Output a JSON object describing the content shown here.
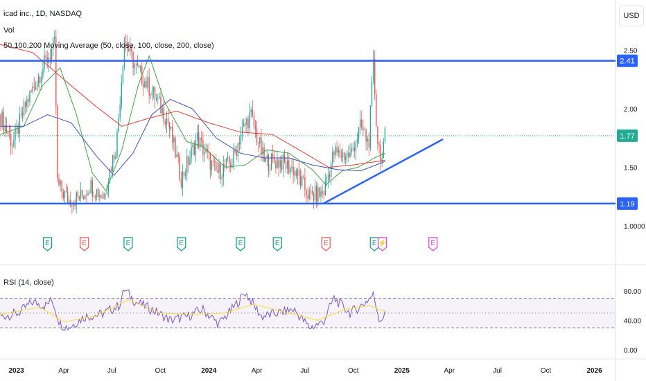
{
  "header": {
    "symbol": "icad inc., 1D, NASDAQ",
    "vol_label": "Vol",
    "ma_label": "50,100,200 Moving Average (50, close, 100, close, 200, close)",
    "rsi_label": "RSI (14, close)",
    "currency": "USD"
  },
  "colors": {
    "up": "#26a69a",
    "down": "#ef5350",
    "ma50": "#43a047",
    "ma100": "#3f51b5",
    "ma200": "#e53935",
    "trendline": "#2962ff",
    "rsi": "#7e57c2",
    "rsi_ma": "#fdd835",
    "price_badge": "#22ab94",
    "earnings": "#089981",
    "earnings_future": "#d53fd8"
  },
  "chart_data": [
    {
      "type": "candlestick",
      "title": "icad inc., 1D, NASDAQ",
      "y_ticks": [
        "2.50",
        "2.00",
        "1.50",
        "1.0000"
      ],
      "ylim": [
        0.85,
        2.9
      ],
      "x_ticks": [
        "2023",
        "Apr",
        "Jul",
        "Oct",
        "2024",
        "Apr",
        "Jul",
        "Oct",
        "2025",
        "Apr",
        "Jul",
        "Oct",
        "2026"
      ],
      "last_price": "1.77",
      "horizontal_lines": [
        {
          "label": "2.41",
          "value": 2.41
        },
        {
          "label": "1.19",
          "value": 1.19
        }
      ],
      "trendline": {
        "from": {
          "date": "2024-08-05",
          "value": 1.19
        },
        "to": {
          "date": "2025-03-20",
          "value": 1.74
        }
      },
      "earnings_markers": [
        {
          "date": "2023-03-01",
          "letter": "E",
          "beat": true
        },
        {
          "date": "2023-05-10",
          "letter": "E",
          "beat": false
        },
        {
          "date": "2023-08-01",
          "letter": "E",
          "beat": true
        },
        {
          "date": "2023-11-10",
          "letter": "E",
          "beat": true
        },
        {
          "date": "2024-03-01",
          "letter": "E",
          "beat": true
        },
        {
          "date": "2024-05-10",
          "letter": "E",
          "beat": true
        },
        {
          "date": "2024-08-10",
          "letter": "E",
          "beat": false
        },
        {
          "date": "2024-11-10",
          "letter": "E",
          "beat": true
        },
        {
          "date": "2024-11-25",
          "letter": "⚡",
          "beat": null
        },
        {
          "date": "2025-03-01",
          "letter": "E",
          "beat": null
        }
      ],
      "series": [
        {
          "name": "price",
          "points": [
            {
              "date": "2022-12-01",
              "value": 1.95
            },
            {
              "date": "2022-12-25",
              "value": 1.7
            },
            {
              "date": "2023-01-20",
              "value": 2.05
            },
            {
              "date": "2023-02-20",
              "value": 2.35
            },
            {
              "date": "2023-03-15",
              "value": 2.55
            },
            {
              "date": "2023-03-20",
              "value": 1.35
            },
            {
              "date": "2023-04-10",
              "value": 1.22
            },
            {
              "date": "2023-05-05",
              "value": 1.25
            },
            {
              "date": "2023-05-20",
              "value": 1.35
            },
            {
              "date": "2023-06-15",
              "value": 1.25
            },
            {
              "date": "2023-07-10",
              "value": 1.7
            },
            {
              "date": "2023-07-25",
              "value": 2.6
            },
            {
              "date": "2023-08-15",
              "value": 2.35
            },
            {
              "date": "2023-09-15",
              "value": 2.15
            },
            {
              "date": "2023-10-15",
              "value": 1.9
            },
            {
              "date": "2023-11-10",
              "value": 1.4
            },
            {
              "date": "2023-12-10",
              "value": 1.75
            },
            {
              "date": "2024-01-15",
              "value": 1.45
            },
            {
              "date": "2024-02-15",
              "value": 1.55
            },
            {
              "date": "2024-03-01",
              "value": 1.78
            },
            {
              "date": "2024-03-20",
              "value": 1.95
            },
            {
              "date": "2024-04-15",
              "value": 1.55
            },
            {
              "date": "2024-05-15",
              "value": 1.55
            },
            {
              "date": "2024-06-10",
              "value": 1.48
            },
            {
              "date": "2024-07-10",
              "value": 1.25
            },
            {
              "date": "2024-08-05",
              "value": 1.28
            },
            {
              "date": "2024-08-25",
              "value": 1.62
            },
            {
              "date": "2024-09-25",
              "value": 1.6
            },
            {
              "date": "2024-10-15",
              "value": 1.85
            },
            {
              "date": "2024-10-30",
              "value": 1.7
            },
            {
              "date": "2024-11-08",
              "value": 2.38
            },
            {
              "date": "2024-11-15",
              "value": 1.75
            },
            {
              "date": "2024-11-25",
              "value": 1.55
            },
            {
              "date": "2024-11-30",
              "value": 1.77
            }
          ]
        },
        {
          "name": "MA50",
          "points": [
            {
              "date": "2022-12-01",
              "value": 1.78
            },
            {
              "date": "2023-01-15",
              "value": 1.85
            },
            {
              "date": "2023-02-20",
              "value": 2.2
            },
            {
              "date": "2023-03-25",
              "value": 2.35
            },
            {
              "date": "2023-04-25",
              "value": 1.95
            },
            {
              "date": "2023-05-25",
              "value": 1.45
            },
            {
              "date": "2023-06-20",
              "value": 1.3
            },
            {
              "date": "2023-07-20",
              "value": 1.65
            },
            {
              "date": "2023-08-20",
              "value": 2.2
            },
            {
              "date": "2023-09-10",
              "value": 2.45
            },
            {
              "date": "2023-10-10",
              "value": 2.05
            },
            {
              "date": "2023-11-20",
              "value": 1.72
            },
            {
              "date": "2023-12-20",
              "value": 1.68
            },
            {
              "date": "2024-02-01",
              "value": 1.5
            },
            {
              "date": "2024-03-10",
              "value": 1.52
            },
            {
              "date": "2024-04-20",
              "value": 1.65
            },
            {
              "date": "2024-06-01",
              "value": 1.62
            },
            {
              "date": "2024-07-15",
              "value": 1.48
            },
            {
              "date": "2024-08-10",
              "value": 1.35
            },
            {
              "date": "2024-09-10",
              "value": 1.47
            },
            {
              "date": "2024-10-10",
              "value": 1.5
            },
            {
              "date": "2024-11-10",
              "value": 1.58
            },
            {
              "date": "2024-11-30",
              "value": 1.62
            }
          ]
        },
        {
          "name": "MA100",
          "points": [
            {
              "date": "2022-12-01",
              "value": 1.85
            },
            {
              "date": "2023-01-15",
              "value": 1.85
            },
            {
              "date": "2023-03-01",
              "value": 1.95
            },
            {
              "date": "2023-04-15",
              "value": 1.88
            },
            {
              "date": "2023-06-01",
              "value": 1.6
            },
            {
              "date": "2023-07-05",
              "value": 1.43
            },
            {
              "date": "2023-08-10",
              "value": 1.62
            },
            {
              "date": "2023-09-15",
              "value": 1.95
            },
            {
              "date": "2023-10-20",
              "value": 2.08
            },
            {
              "date": "2023-12-01",
              "value": 2.0
            },
            {
              "date": "2024-01-15",
              "value": 1.75
            },
            {
              "date": "2024-03-01",
              "value": 1.62
            },
            {
              "date": "2024-04-15",
              "value": 1.58
            },
            {
              "date": "2024-06-01",
              "value": 1.58
            },
            {
              "date": "2024-07-15",
              "value": 1.52
            },
            {
              "date": "2024-09-01",
              "value": 1.48
            },
            {
              "date": "2024-10-15",
              "value": 1.47
            },
            {
              "date": "2024-11-30",
              "value": 1.55
            }
          ]
        },
        {
          "name": "MA200",
          "points": [
            {
              "date": "2022-12-01",
              "value": 2.55
            },
            {
              "date": "2023-02-01",
              "value": 2.48
            },
            {
              "date": "2023-04-01",
              "value": 2.25
            },
            {
              "date": "2023-06-01",
              "value": 2.02
            },
            {
              "date": "2023-07-20",
              "value": 1.85
            },
            {
              "date": "2023-09-10",
              "value": 1.92
            },
            {
              "date": "2023-11-01",
              "value": 1.98
            },
            {
              "date": "2024-01-01",
              "value": 1.88
            },
            {
              "date": "2024-03-01",
              "value": 1.8
            },
            {
              "date": "2024-05-01",
              "value": 1.78
            },
            {
              "date": "2024-07-01",
              "value": 1.62
            },
            {
              "date": "2024-08-15",
              "value": 1.5
            },
            {
              "date": "2024-10-01",
              "value": 1.52
            },
            {
              "date": "2024-11-30",
              "value": 1.56
            }
          ]
        }
      ]
    },
    {
      "type": "line",
      "title": "RSI (14, close)",
      "y_ticks": [
        "80.00",
        "40.00",
        "0.00"
      ],
      "ylim": [
        -10,
        95
      ],
      "bands": [
        70,
        50,
        30
      ],
      "series": [
        {
          "name": "RSI",
          "points": [
            {
              "date": "2022-12-01",
              "value": 45
            },
            {
              "date": "2023-01-05",
              "value": 50
            },
            {
              "date": "2023-02-01",
              "value": 65
            },
            {
              "date": "2023-02-25",
              "value": 60
            },
            {
              "date": "2023-03-10",
              "value": 68
            },
            {
              "date": "2023-03-25",
              "value": 35
            },
            {
              "date": "2023-04-10",
              "value": 30
            },
            {
              "date": "2023-05-10",
              "value": 45
            },
            {
              "date": "2023-06-10",
              "value": 48
            },
            {
              "date": "2023-07-15",
              "value": 60
            },
            {
              "date": "2023-07-25",
              "value": 82
            },
            {
              "date": "2023-08-15",
              "value": 65
            },
            {
              "date": "2023-09-15",
              "value": 55
            },
            {
              "date": "2023-10-20",
              "value": 40
            },
            {
              "date": "2023-11-20",
              "value": 45
            },
            {
              "date": "2023-12-20",
              "value": 55
            },
            {
              "date": "2024-01-20",
              "value": 35
            },
            {
              "date": "2024-02-20",
              "value": 60
            },
            {
              "date": "2024-03-10",
              "value": 78
            },
            {
              "date": "2024-04-10",
              "value": 45
            },
            {
              "date": "2024-05-10",
              "value": 50
            },
            {
              "date": "2024-06-10",
              "value": 55
            },
            {
              "date": "2024-07-10",
              "value": 30
            },
            {
              "date": "2024-08-05",
              "value": 38
            },
            {
              "date": "2024-08-25",
              "value": 70
            },
            {
              "date": "2024-09-25",
              "value": 50
            },
            {
              "date": "2024-10-20",
              "value": 62
            },
            {
              "date": "2024-11-08",
              "value": 75
            },
            {
              "date": "2024-11-20",
              "value": 40
            },
            {
              "date": "2024-11-30",
              "value": 48
            }
          ]
        },
        {
          "name": "RSI MA",
          "points": [
            {
              "date": "2022-12-01",
              "value": 48
            },
            {
              "date": "2023-02-15",
              "value": 58
            },
            {
              "date": "2023-04-01",
              "value": 38
            },
            {
              "date": "2023-06-01",
              "value": 46
            },
            {
              "date": "2023-08-01",
              "value": 68
            },
            {
              "date": "2023-10-01",
              "value": 50
            },
            {
              "date": "2023-12-01",
              "value": 48
            },
            {
              "date": "2024-02-01",
              "value": 50
            },
            {
              "date": "2024-03-25",
              "value": 62
            },
            {
              "date": "2024-06-01",
              "value": 50
            },
            {
              "date": "2024-07-25",
              "value": 40
            },
            {
              "date": "2024-09-15",
              "value": 55
            },
            {
              "date": "2024-11-01",
              "value": 60
            },
            {
              "date": "2024-11-30",
              "value": 52
            }
          ]
        }
      ]
    }
  ]
}
